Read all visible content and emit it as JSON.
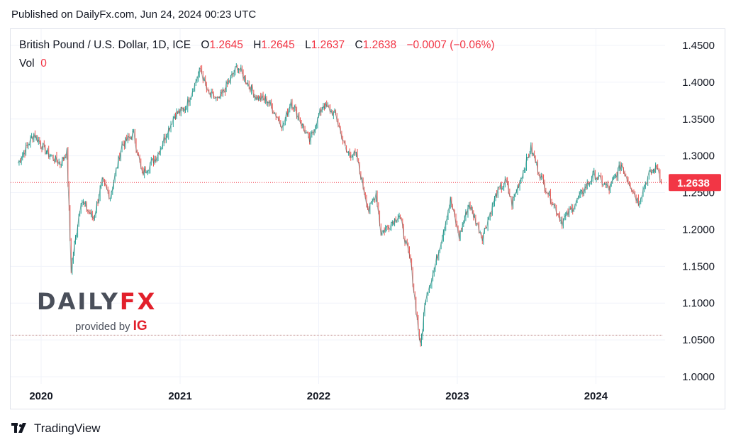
{
  "header": {
    "published": "Published on DailyFx.com, Jun 24, 2024 00:23 UTC"
  },
  "legend": {
    "symbol": "British Pound / U.S. Dollar, 1D, ICE",
    "o_label": "O",
    "o_value": "1.2645",
    "h_label": "H",
    "h_value": "1.2645",
    "l_label": "L",
    "l_value": "1.2637",
    "c_label": "C",
    "c_value": "1.2638",
    "change": "−0.0007 (−0.06%)",
    "vol_label": "Vol",
    "vol_value": "0"
  },
  "watermark": {
    "brand_left": "DAILY",
    "brand_right": "FX",
    "provided_by": "provided by",
    "ig": "IG"
  },
  "footer": {
    "tradingview": "TradingView"
  },
  "colors": {
    "up": "#26a69a",
    "down": "#ef5350",
    "price_label": "#f23645",
    "grid": "#f0f3fa"
  },
  "chart_data": {
    "type": "line",
    "title": "British Pound / U.S. Dollar, 1D, ICE",
    "xlabel": "",
    "ylabel": "",
    "ylim": [
      1.0,
      1.45
    ],
    "y_ticks": [
      "1.4500",
      "1.4000",
      "1.3500",
      "1.3000",
      "1.2500",
      "1.2000",
      "1.1500",
      "1.1000",
      "1.0500",
      "1.0000"
    ],
    "x_ticks": [
      "2020",
      "2021",
      "2022",
      "2023",
      "2024"
    ],
    "last_price": "1.2638",
    "support_line": 1.0565,
    "series": [
      {
        "x": [
          "2019-11-01",
          "2019-12-13",
          "2020-01-15",
          "2020-02-20",
          "2020-03-09",
          "2020-03-20",
          "2020-04-15",
          "2020-05-18",
          "2020-06-10",
          "2020-07-01",
          "2020-08-01",
          "2020-09-01",
          "2020-09-23",
          "2020-11-01",
          "2020-12-17",
          "2021-01-15",
          "2021-02-24",
          "2021-03-15",
          "2021-04-12",
          "2021-06-01",
          "2021-07-20",
          "2021-08-20",
          "2021-09-29",
          "2021-10-20",
          "2021-12-08",
          "2022-01-13",
          "2022-02-15",
          "2022-03-15",
          "2022-04-10",
          "2022-05-13",
          "2022-06-01",
          "2022-06-14",
          "2022-08-01",
          "2022-08-31",
          "2022-09-26",
          "2022-10-10",
          "2022-11-01",
          "2022-12-14",
          "2023-01-06",
          "2023-02-01",
          "2023-03-08",
          "2023-04-15",
          "2023-05-10",
          "2023-05-25",
          "2023-07-14",
          "2023-08-10",
          "2023-09-25",
          "2023-10-04",
          "2023-11-01",
          "2023-12-27",
          "2024-02-05",
          "2024-03-08",
          "2024-04-22",
          "2024-05-20",
          "2024-06-12",
          "2024-06-21"
        ],
        "y": [
          1.29,
          1.33,
          1.305,
          1.29,
          1.305,
          1.145,
          1.24,
          1.215,
          1.265,
          1.245,
          1.315,
          1.33,
          1.275,
          1.3,
          1.355,
          1.365,
          1.418,
          1.385,
          1.375,
          1.422,
          1.38,
          1.375,
          1.34,
          1.375,
          1.32,
          1.37,
          1.355,
          1.305,
          1.3,
          1.225,
          1.25,
          1.195,
          1.22,
          1.155,
          1.04,
          1.11,
          1.145,
          1.24,
          1.19,
          1.235,
          1.19,
          1.25,
          1.265,
          1.235,
          1.31,
          1.27,
          1.22,
          1.21,
          1.23,
          1.275,
          1.255,
          1.288,
          1.237,
          1.275,
          1.285,
          1.264
        ]
      }
    ]
  }
}
